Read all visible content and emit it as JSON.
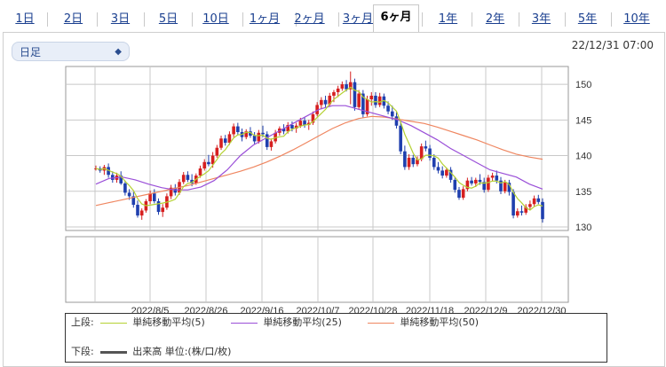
{
  "tabs": [
    {
      "label": "1日"
    },
    {
      "label": "2日"
    },
    {
      "label": "3日"
    },
    {
      "label": "5日"
    },
    {
      "label": "10日"
    },
    {
      "label": "1ヶ月"
    },
    {
      "label": "2ヶ月"
    },
    {
      "label": "3ヶ月"
    },
    {
      "label": "6ヶ月"
    },
    {
      "label": "1年"
    },
    {
      "label": "2年"
    },
    {
      "label": "3年"
    },
    {
      "label": "5年"
    },
    {
      "label": "10年"
    }
  ],
  "active_tab": "6ヶ月",
  "period_select": {
    "value": "日足"
  },
  "datetime": "22/12/31 07:00",
  "legend": {
    "upper_label": "上段:",
    "lower_label": "下段:",
    "ma5": "単純移動平均(5)",
    "ma25": "単純移動平均(25)",
    "ma50": "単純移動平均(50)",
    "volume": "出来高 単位:(株/口/枚)"
  },
  "colors": {
    "ma5": "#b5d133",
    "ma25": "#9a4fd8",
    "ma50": "#ef8660",
    "up": "#d61f1f",
    "down": "#1f3fae"
  },
  "chart_data": {
    "type": "candlestick",
    "ylim": [
      129.5,
      152.5
    ],
    "yticks": [
      130,
      135,
      140,
      145,
      150
    ],
    "xtick_labels": [
      "2022/8/5",
      "2022/8/26",
      "2022/9/16",
      "2022/10/7",
      "2022/10/28",
      "2022/11/18",
      "2022/12/9",
      "2022/12/30"
    ],
    "series": [
      {
        "name": "単純移動平均(5)",
        "values": []
      },
      {
        "name": "単純移動平均(25)",
        "values": [
          136.0,
          136.8,
          137.0,
          136.6,
          136.0,
          135.5,
          135.2,
          135.2,
          135.6,
          136.5,
          138.0,
          140.0,
          141.5,
          142.5,
          143.5,
          144.5,
          145.5,
          146.5,
          147.0,
          147.0,
          146.5,
          146.0,
          145.5,
          145.0,
          144.2,
          143.2,
          142.2,
          141.0,
          140.0,
          139.0,
          138.0,
          137.5,
          137.0,
          136.0,
          135.3
        ]
      },
      {
        "name": "単純移動平均(50)",
        "values": [
          133.0,
          133.4,
          133.8,
          134.2,
          134.6,
          135.0,
          135.4,
          135.8,
          136.3,
          136.8,
          137.3,
          137.8,
          138.4,
          139.1,
          139.9,
          140.8,
          141.8,
          142.8,
          143.8,
          144.6,
          145.2,
          145.5,
          145.4,
          145.1,
          144.8,
          144.5,
          144.0,
          143.4,
          142.8,
          142.2,
          141.5,
          140.8,
          140.2,
          139.8,
          139.5
        ]
      }
    ],
    "candles": [
      [
        138.1,
        138.6,
        137.9,
        138.2
      ],
      [
        138.2,
        138.5,
        137.6,
        137.9
      ],
      [
        137.9,
        138.7,
        137.3,
        138.4
      ],
      [
        138.4,
        138.9,
        136.9,
        137.3
      ],
      [
        137.3,
        137.8,
        136.2,
        136.6
      ],
      [
        136.6,
        137.6,
        136.2,
        137.2
      ],
      [
        137.2,
        137.8,
        135.9,
        136.1
      ],
      [
        136.1,
        136.5,
        134.4,
        134.8
      ],
      [
        134.8,
        135.3,
        133.8,
        134.3
      ],
      [
        134.3,
        134.9,
        132.7,
        133.1
      ],
      [
        133.1,
        133.7,
        131.3,
        131.6
      ],
      [
        131.6,
        132.6,
        131.0,
        132.3
      ],
      [
        132.3,
        133.9,
        132.0,
        133.6
      ],
      [
        133.6,
        135.1,
        133.2,
        134.7
      ],
      [
        134.7,
        135.3,
        133.3,
        133.6
      ],
      [
        133.6,
        134.0,
        131.7,
        132.1
      ],
      [
        132.1,
        133.2,
        131.4,
        132.7
      ],
      [
        132.7,
        134.7,
        132.4,
        134.3
      ],
      [
        134.3,
        135.9,
        133.9,
        135.5
      ],
      [
        135.5,
        136.0,
        134.4,
        134.8
      ],
      [
        134.8,
        136.7,
        134.5,
        136.3
      ],
      [
        136.3,
        137.7,
        136.0,
        137.3
      ],
      [
        137.3,
        137.8,
        136.3,
        136.6
      ],
      [
        136.6,
        137.4,
        135.7,
        136.1
      ],
      [
        136.1,
        137.5,
        135.9,
        137.2
      ],
      [
        137.2,
        138.6,
        136.9,
        138.2
      ],
      [
        138.2,
        139.5,
        137.9,
        139.1
      ],
      [
        139.1,
        140.1,
        138.5,
        138.8
      ],
      [
        138.8,
        140.5,
        138.3,
        140.0
      ],
      [
        140.0,
        141.5,
        139.7,
        141.1
      ],
      [
        141.1,
        142.8,
        140.8,
        142.4
      ],
      [
        142.4,
        142.9,
        141.4,
        141.8
      ],
      [
        141.8,
        143.4,
        141.5,
        143.0
      ],
      [
        143.0,
        144.5,
        142.6,
        144.1
      ],
      [
        144.1,
        144.6,
        142.9,
        143.3
      ],
      [
        143.3,
        143.8,
        142.0,
        142.6
      ],
      [
        142.6,
        143.7,
        142.3,
        143.4
      ],
      [
        143.4,
        144.0,
        142.5,
        142.8
      ],
      [
        142.8,
        143.3,
        141.6,
        142.0
      ],
      [
        142.0,
        143.6,
        141.7,
        143.2
      ],
      [
        143.2,
        144.2,
        142.6,
        143.0
      ],
      [
        143.0,
        143.4,
        140.8,
        141.2
      ],
      [
        141.2,
        142.4,
        140.7,
        142.0
      ],
      [
        142.0,
        143.6,
        141.7,
        143.2
      ],
      [
        143.2,
        144.1,
        142.8,
        143.8
      ],
      [
        143.8,
        144.4,
        143.0,
        143.4
      ],
      [
        143.4,
        144.7,
        143.1,
        144.3
      ],
      [
        144.3,
        144.8,
        143.4,
        143.8
      ],
      [
        143.8,
        144.6,
        143.2,
        144.2
      ],
      [
        144.2,
        145.3,
        143.9,
        144.9
      ],
      [
        144.9,
        145.4,
        143.9,
        144.3
      ],
      [
        144.3,
        145.0,
        143.6,
        144.6
      ],
      [
        144.6,
        146.2,
        144.3,
        145.8
      ],
      [
        145.8,
        147.5,
        145.5,
        147.1
      ],
      [
        147.1,
        148.2,
        146.5,
        147.8
      ],
      [
        147.8,
        148.4,
        146.8,
        147.2
      ],
      [
        147.2,
        148.8,
        146.9,
        148.4
      ],
      [
        148.4,
        149.2,
        147.5,
        148.9
      ],
      [
        148.9,
        149.8,
        148.2,
        149.4
      ],
      [
        149.4,
        150.4,
        149.1,
        150.0
      ],
      [
        150.0,
        150.6,
        149.0,
        149.3
      ],
      [
        149.3,
        151.8,
        147.2,
        150.3
      ],
      [
        150.3,
        150.8,
        146.3,
        146.8
      ],
      [
        146.8,
        149.2,
        146.5,
        148.7
      ],
      [
        148.7,
        149.2,
        145.3,
        145.8
      ],
      [
        145.8,
        148.4,
        145.5,
        147.9
      ],
      [
        147.9,
        148.9,
        147.0,
        148.4
      ],
      [
        148.4,
        148.9,
        146.7,
        147.1
      ],
      [
        147.1,
        148.8,
        146.8,
        148.3
      ],
      [
        148.3,
        148.7,
        146.6,
        147.0
      ],
      [
        147.0,
        147.6,
        145.8,
        146.2
      ],
      [
        146.2,
        147.0,
        145.0,
        145.5
      ],
      [
        145.5,
        146.1,
        143.8,
        144.2
      ],
      [
        144.2,
        144.7,
        140.2,
        140.6
      ],
      [
        140.6,
        141.4,
        138.0,
        138.4
      ],
      [
        138.4,
        140.2,
        138.0,
        139.7
      ],
      [
        139.7,
        140.1,
        138.4,
        138.8
      ],
      [
        138.8,
        139.9,
        138.5,
        139.5
      ],
      [
        139.5,
        141.7,
        139.2,
        141.3
      ],
      [
        141.3,
        142.1,
        140.6,
        141.0
      ],
      [
        141.0,
        141.5,
        139.3,
        139.7
      ],
      [
        139.7,
        140.2,
        138.0,
        138.4
      ],
      [
        138.4,
        139.1,
        137.5,
        137.9
      ],
      [
        137.9,
        138.5,
        136.8,
        137.2
      ],
      [
        137.2,
        138.3,
        136.9,
        138.0
      ],
      [
        138.0,
        138.4,
        136.2,
        136.6
      ],
      [
        136.6,
        137.0,
        134.8,
        135.2
      ],
      [
        135.2,
        135.6,
        133.8,
        134.1
      ],
      [
        134.1,
        135.7,
        133.8,
        135.3
      ],
      [
        135.3,
        136.9,
        135.0,
        136.5
      ],
      [
        136.5,
        137.0,
        135.8,
        136.1
      ],
      [
        136.1,
        136.9,
        135.6,
        136.6
      ],
      [
        136.6,
        137.4,
        135.9,
        136.3
      ],
      [
        136.3,
        136.9,
        134.8,
        135.2
      ],
      [
        135.2,
        137.3,
        134.9,
        136.9
      ],
      [
        136.9,
        137.6,
        136.4,
        137.2
      ],
      [
        137.2,
        137.9,
        136.1,
        136.5
      ],
      [
        136.5,
        137.0,
        134.6,
        135.0
      ],
      [
        135.0,
        136.6,
        134.7,
        136.2
      ],
      [
        136.2,
        136.6,
        134.4,
        134.9
      ],
      [
        134.9,
        135.3,
        131.2,
        131.6
      ],
      [
        131.6,
        132.6,
        131.3,
        132.2
      ],
      [
        132.2,
        133.0,
        131.6,
        132.0
      ],
      [
        132.0,
        133.2,
        131.7,
        132.8
      ],
      [
        132.8,
        133.7,
        132.4,
        133.2
      ],
      [
        133.2,
        134.4,
        132.9,
        134.0
      ],
      [
        134.0,
        134.5,
        133.2,
        133.5
      ],
      [
        133.5,
        134.0,
        130.6,
        131.1
      ]
    ]
  }
}
